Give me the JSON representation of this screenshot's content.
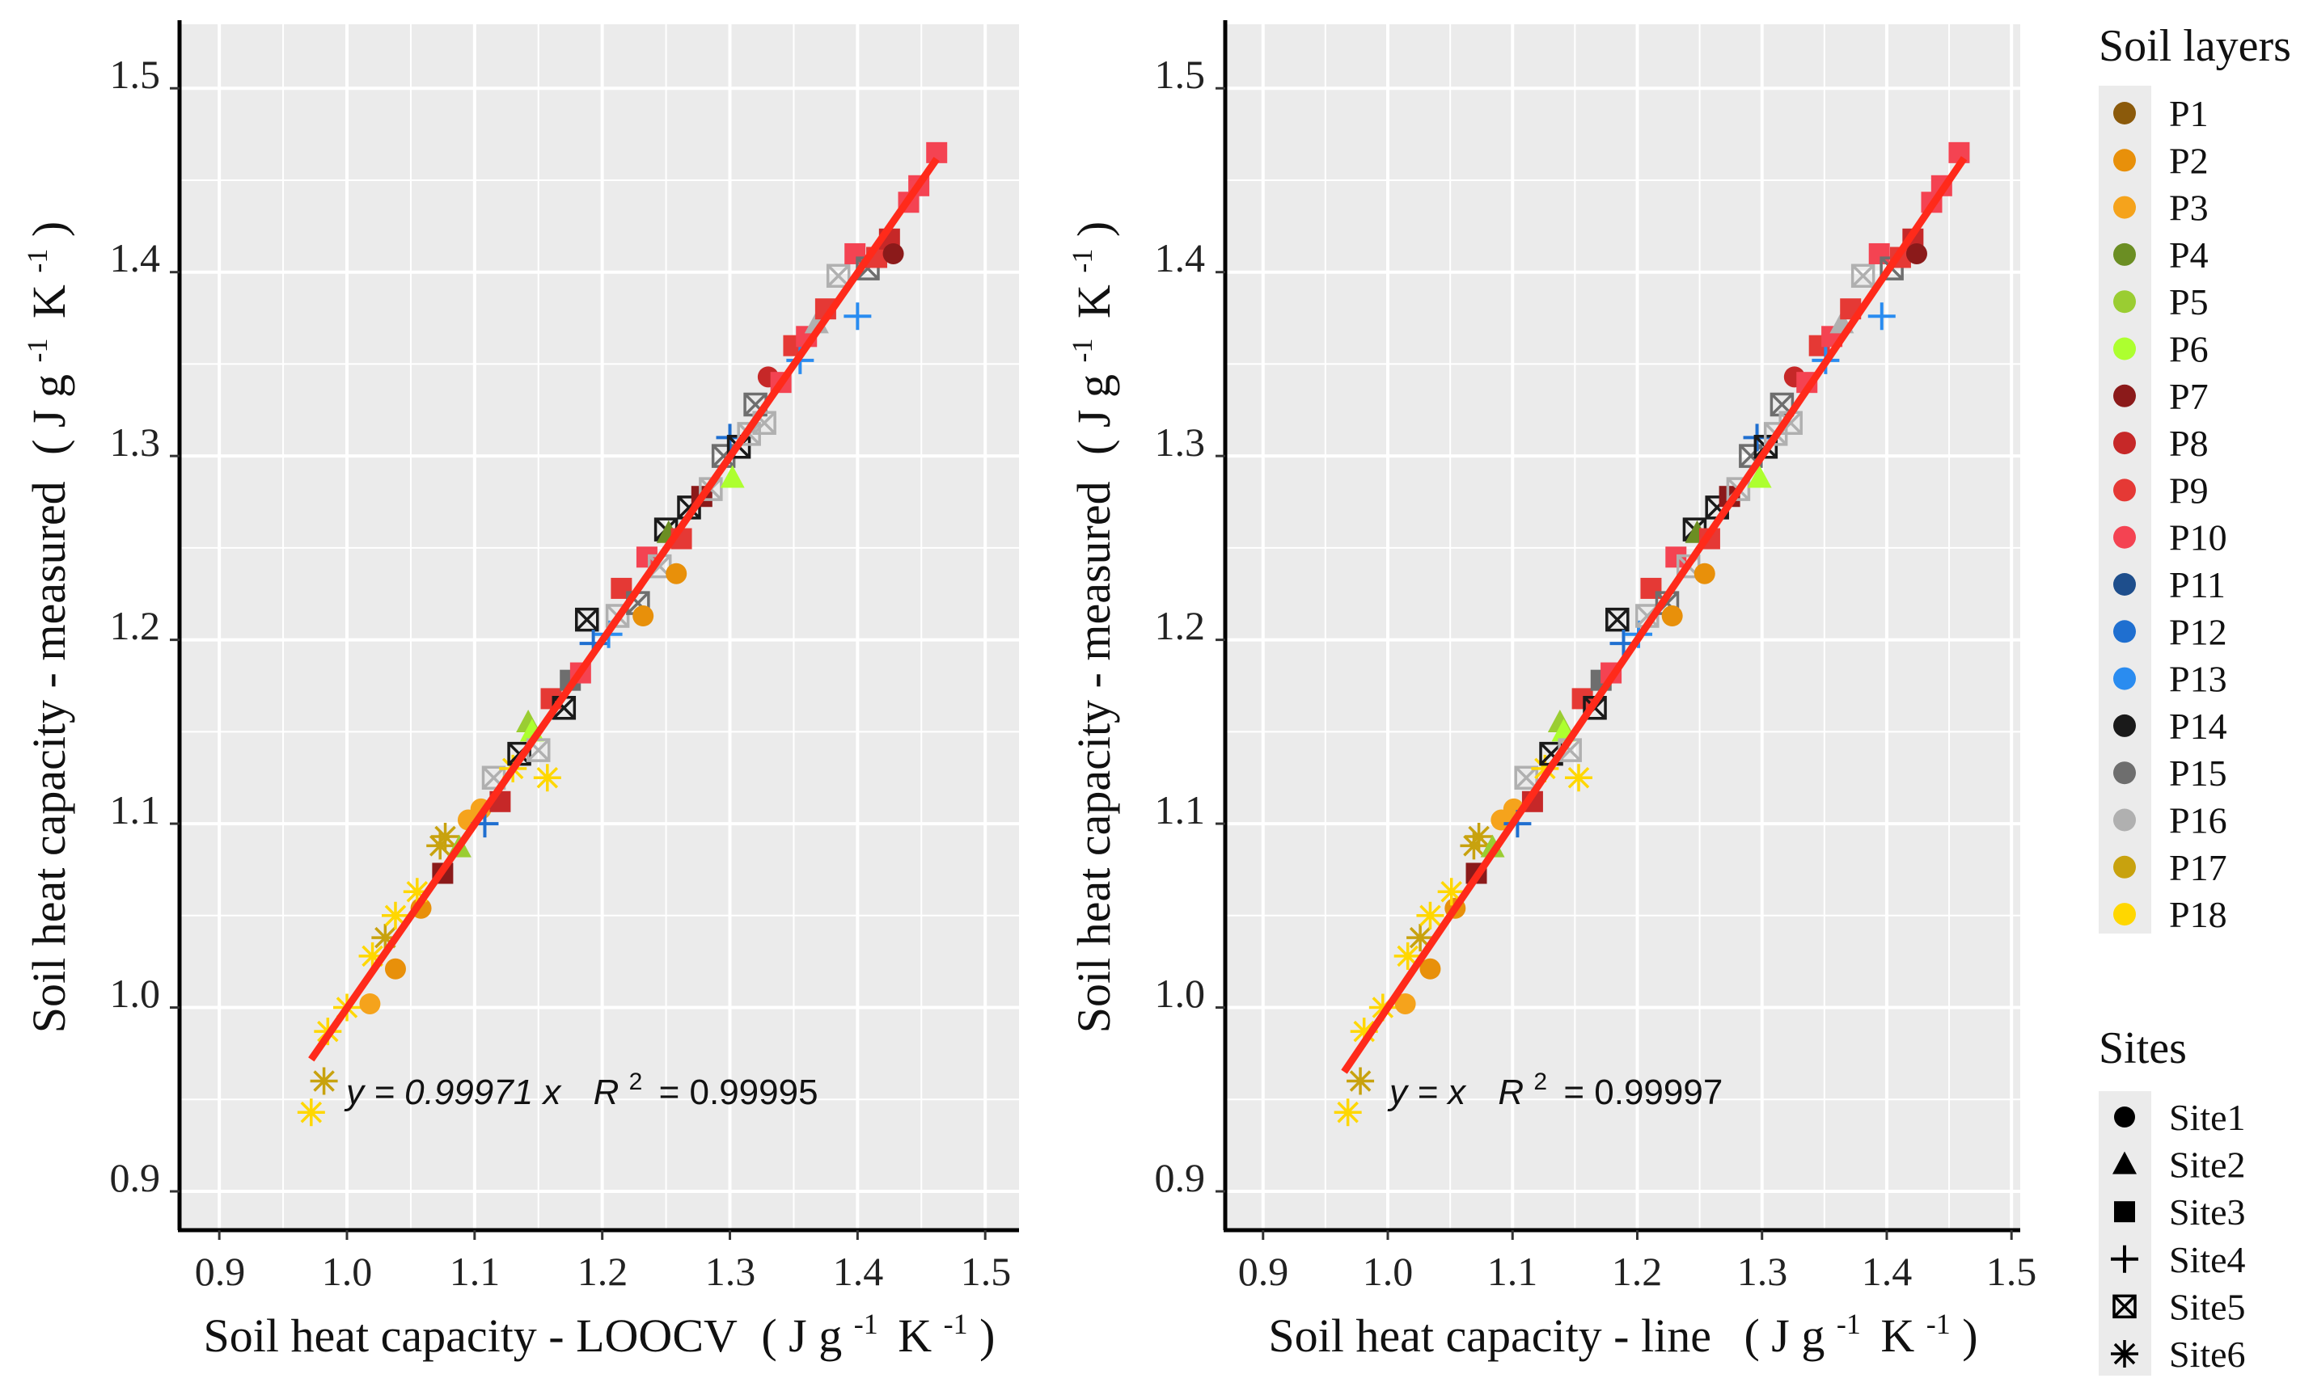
{
  "chart_data": [
    {
      "type": "scatter",
      "panel": "left",
      "xlabel": "Soil heat capacity - LOOCV",
      "ylabel": "Soil heat capacity - measured",
      "xlim": [
        0.875,
        1.525
      ],
      "ylim": [
        0.875,
        1.53
      ],
      "xticks": [
        "0.9",
        "1.0",
        "1.1",
        "1.2",
        "1.3",
        "1.4",
        "1.5"
      ],
      "yticks": [
        "0.9",
        "1.0",
        "1.1",
        "1.2",
        "1.3",
        "1.4",
        "1.5"
      ],
      "fit_line": {
        "slope": 0.99971,
        "x_range": [
          0.972,
          1.462
        ]
      },
      "equation": {
        "label": "y = 0.99971 x",
        "r2_text": "R",
        "r2_value": "= 0.99995"
      }
    },
    {
      "type": "scatter",
      "panel": "right",
      "xlabel": "Soil heat capacity - line",
      "ylabel": "Soil heat capacity - measured",
      "xlim": [
        0.875,
        1.525
      ],
      "ylim": [
        0.875,
        1.53
      ],
      "xticks": [
        "0.9",
        "1.0",
        "1.1",
        "1.2",
        "1.3",
        "1.4",
        "1.5"
      ],
      "yticks": [
        "0.9",
        "1.0",
        "1.1",
        "1.2",
        "1.3",
        "1.4",
        "1.5"
      ],
      "fit_line": {
        "slope": 1.0,
        "x_range": [
          0.965,
          1.462
        ]
      },
      "equation": {
        "label": "y =  x",
        "r2_text": "R",
        "r2_value": "= 0.99997"
      }
    }
  ],
  "points": [
    {
      "x": 0.972,
      "y": 0.943,
      "layer": "P18",
      "site": "Site6"
    },
    {
      "x": 0.982,
      "y": 0.96,
      "layer": "P17",
      "site": "Site6"
    },
    {
      "x": 0.985,
      "y": 0.987,
      "layer": "P18",
      "site": "Site6"
    },
    {
      "x": 1.0,
      "y": 1.0,
      "layer": "P18",
      "site": "Site6"
    },
    {
      "x": 1.018,
      "y": 1.002,
      "layer": "P3",
      "site": "Site1"
    },
    {
      "x": 1.038,
      "y": 1.021,
      "layer": "P2",
      "site": "Site1"
    },
    {
      "x": 1.02,
      "y": 1.028,
      "layer": "P18",
      "site": "Site6"
    },
    {
      "x": 1.03,
      "y": 1.038,
      "layer": "P17",
      "site": "Site6"
    },
    {
      "x": 1.038,
      "y": 1.05,
      "layer": "P18",
      "site": "Site6"
    },
    {
      "x": 1.058,
      "y": 1.054,
      "layer": "P2",
      "site": "Site1"
    },
    {
      "x": 1.055,
      "y": 1.063,
      "layer": "P18",
      "site": "Site6"
    },
    {
      "x": 1.075,
      "y": 1.073,
      "layer": "P7",
      "site": "Site3"
    },
    {
      "x": 1.073,
      "y": 1.088,
      "layer": "P17",
      "site": "Site6"
    },
    {
      "x": 1.077,
      "y": 1.093,
      "layer": "P17",
      "site": "Site6"
    },
    {
      "x": 1.088,
      "y": 1.087,
      "layer": "P5",
      "site": "Site2"
    },
    {
      "x": 1.095,
      "y": 1.102,
      "layer": "P3",
      "site": "Site1"
    },
    {
      "x": 1.105,
      "y": 1.108,
      "layer": "P3",
      "site": "Site1"
    },
    {
      "x": 1.108,
      "y": 1.1,
      "layer": "P12",
      "site": "Site4"
    },
    {
      "x": 1.115,
      "y": 1.125,
      "layer": "P16",
      "site": "Site5"
    },
    {
      "x": 1.12,
      "y": 1.112,
      "layer": "P8",
      "site": "Site3"
    },
    {
      "x": 1.13,
      "y": 1.13,
      "layer": "P18",
      "site": "Site6"
    },
    {
      "x": 1.135,
      "y": 1.138,
      "layer": "P14",
      "site": "Site5"
    },
    {
      "x": 1.142,
      "y": 1.155,
      "layer": "P5",
      "site": "Site2"
    },
    {
      "x": 1.145,
      "y": 1.15,
      "layer": "P6",
      "site": "Site2"
    },
    {
      "x": 1.15,
      "y": 1.14,
      "layer": "P16",
      "site": "Site5"
    },
    {
      "x": 1.157,
      "y": 1.125,
      "layer": "P18",
      "site": "Site6"
    },
    {
      "x": 1.16,
      "y": 1.168,
      "layer": "P9",
      "site": "Site3"
    },
    {
      "x": 1.17,
      "y": 1.163,
      "layer": "P14",
      "site": "Site5"
    },
    {
      "x": 1.175,
      "y": 1.178,
      "layer": "P15",
      "site": "Site3"
    },
    {
      "x": 1.183,
      "y": 1.182,
      "layer": "P10",
      "site": "Site3"
    },
    {
      "x": 1.188,
      "y": 1.211,
      "layer": "P14",
      "site": "Site5"
    },
    {
      "x": 1.193,
      "y": 1.198,
      "layer": "P12",
      "site": "Site4"
    },
    {
      "x": 1.205,
      "y": 1.203,
      "layer": "P13",
      "site": "Site4"
    },
    {
      "x": 1.212,
      "y": 1.213,
      "layer": "P16",
      "site": "Site5"
    },
    {
      "x": 1.215,
      "y": 1.228,
      "layer": "P9",
      "site": "Site3"
    },
    {
      "x": 1.228,
      "y": 1.22,
      "layer": "P15",
      "site": "Site5"
    },
    {
      "x": 1.232,
      "y": 1.213,
      "layer": "P2",
      "site": "Site1"
    },
    {
      "x": 1.235,
      "y": 1.245,
      "layer": "P10",
      "site": "Site3"
    },
    {
      "x": 1.245,
      "y": 1.24,
      "layer": "P16",
      "site": "Site5"
    },
    {
      "x": 1.25,
      "y": 1.26,
      "layer": "P14",
      "site": "Site5"
    },
    {
      "x": 1.252,
      "y": 1.258,
      "layer": "P4",
      "site": "Site2"
    },
    {
      "x": 1.258,
      "y": 1.236,
      "layer": "P2",
      "site": "Site1"
    },
    {
      "x": 1.262,
      "y": 1.255,
      "layer": "P9",
      "site": "Site3"
    },
    {
      "x": 1.268,
      "y": 1.272,
      "layer": "P14",
      "site": "Site5"
    },
    {
      "x": 1.278,
      "y": 1.278,
      "layer": "P7",
      "site": "Site3"
    },
    {
      "x": 1.285,
      "y": 1.282,
      "layer": "P16",
      "site": "Site5"
    },
    {
      "x": 1.295,
      "y": 1.3,
      "layer": "P15",
      "site": "Site5"
    },
    {
      "x": 1.3,
      "y": 1.31,
      "layer": "P12",
      "site": "Site4"
    },
    {
      "x": 1.302,
      "y": 1.288,
      "layer": "P6",
      "site": "Site2"
    },
    {
      "x": 1.307,
      "y": 1.305,
      "layer": "P14",
      "site": "Site5"
    },
    {
      "x": 1.315,
      "y": 1.312,
      "layer": "P16",
      "site": "Site5"
    },
    {
      "x": 1.32,
      "y": 1.328,
      "layer": "P15",
      "site": "Site5"
    },
    {
      "x": 1.327,
      "y": 1.318,
      "layer": "P16",
      "site": "Site5"
    },
    {
      "x": 1.33,
      "y": 1.343,
      "layer": "P8",
      "site": "Site1"
    },
    {
      "x": 1.34,
      "y": 1.34,
      "layer": "P10",
      "site": "Site3"
    },
    {
      "x": 1.35,
      "y": 1.36,
      "layer": "P9",
      "site": "Site3"
    },
    {
      "x": 1.355,
      "y": 1.352,
      "layer": "P13",
      "site": "Site4"
    },
    {
      "x": 1.36,
      "y": 1.365,
      "layer": "P10",
      "site": "Site3"
    },
    {
      "x": 1.368,
      "y": 1.372,
      "layer": "P16",
      "site": "Site2"
    },
    {
      "x": 1.375,
      "y": 1.38,
      "layer": "P9",
      "site": "Site3"
    },
    {
      "x": 1.385,
      "y": 1.398,
      "layer": "P16",
      "site": "Site5"
    },
    {
      "x": 1.4,
      "y": 1.376,
      "layer": "P13",
      "site": "Site4"
    },
    {
      "x": 1.398,
      "y": 1.41,
      "layer": "P10",
      "site": "Site3"
    },
    {
      "x": 1.408,
      "y": 1.402,
      "layer": "P15",
      "site": "Site5"
    },
    {
      "x": 1.415,
      "y": 1.408,
      "layer": "P9",
      "site": "Site3"
    },
    {
      "x": 1.425,
      "y": 1.418,
      "layer": "P8",
      "site": "Site3"
    },
    {
      "x": 1.428,
      "y": 1.41,
      "layer": "P7",
      "site": "Site1"
    },
    {
      "x": 1.44,
      "y": 1.438,
      "layer": "P10",
      "site": "Site3"
    },
    {
      "x": 1.448,
      "y": 1.447,
      "layer": "P10",
      "site": "Site3"
    },
    {
      "x": 1.462,
      "y": 1.465,
      "layer": "P10",
      "site": "Site3"
    }
  ],
  "legend": {
    "layers_title": "Soil layers",
    "layers": [
      {
        "label": "P1",
        "color": "#8B5A0B"
      },
      {
        "label": "P2",
        "color": "#E8900A"
      },
      {
        "label": "P3",
        "color": "#F5A31C"
      },
      {
        "label": "P4",
        "color": "#6B8E23"
      },
      {
        "label": "P5",
        "color": "#9ACD32"
      },
      {
        "label": "P6",
        "color": "#ADFF2F"
      },
      {
        "label": "P7",
        "color": "#8B1A1A"
      },
      {
        "label": "P8",
        "color": "#C62828"
      },
      {
        "label": "P9",
        "color": "#E53935"
      },
      {
        "label": "P10",
        "color": "#F44352"
      },
      {
        "label": "P11",
        "color": "#1E4E8C"
      },
      {
        "label": "P12",
        "color": "#1F6FD0"
      },
      {
        "label": "P13",
        "color": "#2A8CF0"
      },
      {
        "label": "P14",
        "color": "#1A1A1A"
      },
      {
        "label": "P15",
        "color": "#6E6E6E"
      },
      {
        "label": "P16",
        "color": "#B0B0B0"
      },
      {
        "label": "P17",
        "color": "#C8A20E"
      },
      {
        "label": "P18",
        "color": "#FFD700"
      }
    ],
    "sites_title": "Sites",
    "sites": [
      {
        "label": "Site1",
        "shape": "circle"
      },
      {
        "label": "Site2",
        "shape": "triangle"
      },
      {
        "label": "Site3",
        "shape": "square"
      },
      {
        "label": "Site4",
        "shape": "plus"
      },
      {
        "label": "Site5",
        "shape": "boxx"
      },
      {
        "label": "Site6",
        "shape": "asterisk"
      }
    ]
  },
  "units": {
    "open": "(",
    "close": ")",
    "j": "J g",
    "k": "K",
    "exp": "-1"
  },
  "colors": {
    "panel_bg": "#EBEBEB",
    "grid": "#FFFFFF",
    "fit_line": "#FF2A1A"
  }
}
